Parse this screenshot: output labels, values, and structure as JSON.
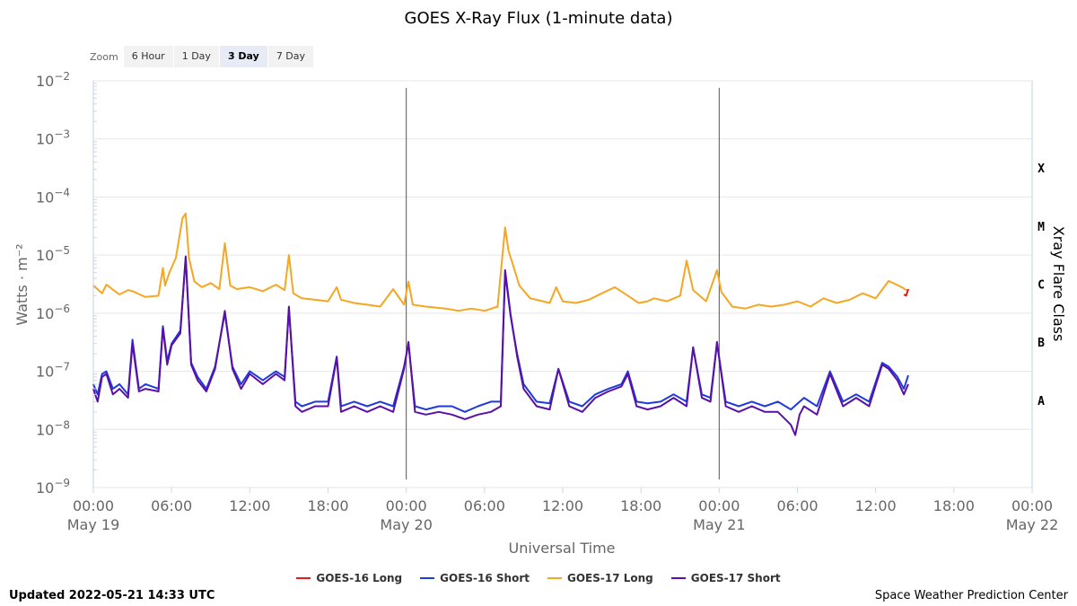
{
  "title": "GOES X-Ray Flux (1-minute data)",
  "zoom": {
    "label": "Zoom",
    "buttons": [
      "6 Hour",
      "1 Day",
      "3 Day",
      "7 Day"
    ],
    "selected": "3 Day"
  },
  "footer": {
    "updated": "Updated 2022-05-21 14:33 UTC",
    "credit": "Space Weather Prediction Center"
  },
  "colors": {
    "goes16_long": "#e41a1c",
    "goes16_short": "#1f3bd9",
    "goes17_long": "#f5a623",
    "goes17_short": "#5a0fa8"
  },
  "chart_data": {
    "type": "line",
    "title": "GOES X-Ray Flux (1-minute data)",
    "xlabel": "Universal Time",
    "ylabel": "Watts · m⁻²",
    "y2label": "Xray Flare Class",
    "yscale": "log",
    "ylim": [
      1e-09,
      0.01
    ],
    "xlim": [
      "2022-05-19 00:00",
      "2022-05-22 00:00"
    ],
    "y_tick_labels": [
      {
        "base": "10",
        "exp": "−2"
      },
      {
        "base": "10",
        "exp": "−3"
      },
      {
        "base": "10",
        "exp": "−4"
      },
      {
        "base": "10",
        "exp": "−5"
      },
      {
        "base": "10",
        "exp": "−6"
      },
      {
        "base": "10",
        "exp": "−7"
      },
      {
        "base": "10",
        "exp": "−8"
      },
      {
        "base": "10",
        "exp": "−9"
      }
    ],
    "x_ticks": [
      {
        "time": "2022-05-19 00:00",
        "label": "00:00",
        "date": "May 19"
      },
      {
        "time": "2022-05-19 06:00",
        "label": "06:00",
        "date": ""
      },
      {
        "time": "2022-05-19 12:00",
        "label": "12:00",
        "date": ""
      },
      {
        "time": "2022-05-19 18:00",
        "label": "18:00",
        "date": ""
      },
      {
        "time": "2022-05-20 00:00",
        "label": "00:00",
        "date": "May 20"
      },
      {
        "time": "2022-05-20 06:00",
        "label": "06:00",
        "date": ""
      },
      {
        "time": "2022-05-20 12:00",
        "label": "12:00",
        "date": ""
      },
      {
        "time": "2022-05-20 18:00",
        "label": "18:00",
        "date": ""
      },
      {
        "time": "2022-05-21 00:00",
        "label": "00:00",
        "date": "May 21"
      },
      {
        "time": "2022-05-21 06:00",
        "label": "06:00",
        "date": ""
      },
      {
        "time": "2022-05-21 12:00",
        "label": "12:00",
        "date": ""
      },
      {
        "time": "2022-05-21 18:00",
        "label": "18:00",
        "date": ""
      },
      {
        "time": "2022-05-22 00:00",
        "label": "00:00",
        "date": "May 22"
      }
    ],
    "day_boundaries": [
      "2022-05-20 00:00",
      "2022-05-21 00:00"
    ],
    "flare_classes": [
      {
        "label": "X",
        "flux": 0.0001
      },
      {
        "label": "M",
        "flux": 1e-05
      },
      {
        "label": "C",
        "flux": 1e-06
      },
      {
        "label": "B",
        "flux": 1e-07
      },
      {
        "label": "A",
        "flux": 1e-08
      }
    ],
    "grid": true,
    "legend_position": "bottom",
    "series": [
      {
        "key": "goes17_long",
        "name": "GOES-17 Long",
        "x": [
          "2022-05-19 00:00",
          "2022-05-19 00:40",
          "2022-05-19 01:00",
          "2022-05-19 02:00",
          "2022-05-19 02:40",
          "2022-05-19 03:00",
          "2022-05-19 04:00",
          "2022-05-19 05:00",
          "2022-05-19 05:20",
          "2022-05-19 05:30",
          "2022-05-19 05:50",
          "2022-05-19 06:20",
          "2022-05-19 06:50",
          "2022-05-19 07:05",
          "2022-05-19 07:20",
          "2022-05-19 07:45",
          "2022-05-19 08:20",
          "2022-05-19 09:00",
          "2022-05-19 09:40",
          "2022-05-19 10:05",
          "2022-05-19 10:30",
          "2022-05-19 11:00",
          "2022-05-19 12:00",
          "2022-05-19 13:00",
          "2022-05-19 14:00",
          "2022-05-19 14:40",
          "2022-05-19 15:00",
          "2022-05-19 15:20",
          "2022-05-19 16:00",
          "2022-05-19 17:00",
          "2022-05-19 18:00",
          "2022-05-19 18:40",
          "2022-05-19 19:00",
          "2022-05-19 20:00",
          "2022-05-19 21:00",
          "2022-05-19 22:00",
          "2022-05-19 23:00",
          "2022-05-19 23:50",
          "2022-05-20 00:10",
          "2022-05-20 00:30",
          "2022-05-20 01:30",
          "2022-05-20 03:00",
          "2022-05-20 04:00",
          "2022-05-20 05:00",
          "2022-05-20 06:00",
          "2022-05-20 07:00",
          "2022-05-20 07:35",
          "2022-05-20 07:50",
          "2022-05-20 08:10",
          "2022-05-20 08:40",
          "2022-05-20 09:30",
          "2022-05-20 10:30",
          "2022-05-20 11:00",
          "2022-05-20 11:30",
          "2022-05-20 12:00",
          "2022-05-20 13:00",
          "2022-05-20 14:00",
          "2022-05-20 15:00",
          "2022-05-20 16:00",
          "2022-05-20 17:00",
          "2022-05-20 17:50",
          "2022-05-20 18:30",
          "2022-05-20 19:00",
          "2022-05-20 20:00",
          "2022-05-20 21:00",
          "2022-05-20 21:30",
          "2022-05-20 22:00",
          "2022-05-20 23:00",
          "2022-05-20 23:50",
          "2022-05-21 00:10",
          "2022-05-21 01:00",
          "2022-05-21 02:00",
          "2022-05-21 03:00",
          "2022-05-21 04:00",
          "2022-05-21 05:00",
          "2022-05-21 06:00",
          "2022-05-21 07:00",
          "2022-05-21 08:00",
          "2022-05-21 09:00",
          "2022-05-21 10:00",
          "2022-05-21 11:00",
          "2022-05-21 12:00",
          "2022-05-21 13:00",
          "2022-05-21 14:00",
          "2022-05-21 14:30"
        ],
        "y": [
          3e-06,
          2.2e-06,
          3.1e-06,
          2.1e-06,
          2.5e-06,
          2.4e-06,
          1.9e-06,
          2e-06,
          6e-06,
          3e-06,
          5e-06,
          9e-06,
          4.3e-05,
          5.2e-05,
          9e-06,
          3.5e-06,
          2.8e-06,
          3.3e-06,
          2.6e-06,
          1.6e-05,
          3e-06,
          2.6e-06,
          2.8e-06,
          2.4e-06,
          3.1e-06,
          2.5e-06,
          1e-05,
          2.2e-06,
          1.8e-06,
          1.7e-06,
          1.6e-06,
          2.8e-06,
          1.7e-06,
          1.5e-06,
          1.4e-06,
          1.3e-06,
          2.6e-06,
          1.4e-06,
          3.5e-06,
          1.4e-06,
          1.3e-06,
          1.2e-06,
          1.1e-06,
          1.2e-06,
          1.1e-06,
          1.3e-06,
          3e-05,
          1.2e-05,
          7e-06,
          3e-06,
          1.8e-06,
          1.6e-06,
          1.5e-06,
          2.8e-06,
          1.6e-06,
          1.5e-06,
          1.7e-06,
          2.2e-06,
          2.8e-06,
          2e-06,
          1.5e-06,
          1.6e-06,
          1.8e-06,
          1.6e-06,
          2e-06,
          8e-06,
          2.5e-06,
          1.6e-06,
          5.5e-06,
          2.3e-06,
          1.3e-06,
          1.2e-06,
          1.4e-06,
          1.3e-06,
          1.4e-06,
          1.6e-06,
          1.3e-06,
          1.8e-06,
          1.5e-06,
          1.7e-06,
          2.2e-06,
          1.8e-06,
          3.6e-06,
          2.8e-06,
          2.4e-06
        ]
      },
      {
        "key": "goes16_long",
        "name": "GOES-16 Long",
        "x": [
          "2022-05-21 14:10",
          "2022-05-21 14:20",
          "2022-05-21 14:30"
        ],
        "y": [
          2.1e-06,
          2e-06,
          2.6e-06
        ]
      },
      {
        "key": "goes16_short",
        "name": "GOES-16 Short",
        "x": [
          "2022-05-19 00:00",
          "2022-05-19 00:20",
          "2022-05-19 00:40",
          "2022-05-19 01:00",
          "2022-05-19 01:30",
          "2022-05-19 02:00",
          "2022-05-19 02:40",
          "2022-05-19 03:00",
          "2022-05-19 03:30",
          "2022-05-19 04:00",
          "2022-05-19 05:00",
          "2022-05-19 05:20",
          "2022-05-19 05:40",
          "2022-05-19 06:00",
          "2022-05-19 06:40",
          "2022-05-19 07:05",
          "2022-05-19 07:30",
          "2022-05-19 08:00",
          "2022-05-19 08:40",
          "2022-05-19 09:20",
          "2022-05-19 10:05",
          "2022-05-19 10:40",
          "2022-05-19 11:20",
          "2022-05-19 12:00",
          "2022-05-19 13:00",
          "2022-05-19 14:00",
          "2022-05-19 14:40",
          "2022-05-19 15:00",
          "2022-05-19 15:30",
          "2022-05-19 16:00",
          "2022-05-19 17:00",
          "2022-05-19 18:00",
          "2022-05-19 18:40",
          "2022-05-19 19:00",
          "2022-05-19 20:00",
          "2022-05-19 21:00",
          "2022-05-19 22:00",
          "2022-05-19 23:00",
          "2022-05-19 23:50",
          "2022-05-20 00:10",
          "2022-05-20 00:40",
          "2022-05-20 01:30",
          "2022-05-20 02:30",
          "2022-05-20 03:30",
          "2022-05-20 04:30",
          "2022-05-20 05:30",
          "2022-05-20 06:30",
          "2022-05-20 07:15",
          "2022-05-20 07:35",
          "2022-05-20 08:00",
          "2022-05-20 08:30",
          "2022-05-20 09:00",
          "2022-05-20 10:00",
          "2022-05-20 11:00",
          "2022-05-20 11:40",
          "2022-05-20 12:30",
          "2022-05-20 13:30",
          "2022-05-20 14:30",
          "2022-05-20 15:30",
          "2022-05-20 16:30",
          "2022-05-20 17:00",
          "2022-05-20 17:40",
          "2022-05-20 18:30",
          "2022-05-20 19:30",
          "2022-05-20 20:30",
          "2022-05-20 21:30",
          "2022-05-20 22:00",
          "2022-05-20 22:40",
          "2022-05-20 23:20",
          "2022-05-20 23:50",
          "2022-05-21 00:30",
          "2022-05-21 01:30",
          "2022-05-21 02:30",
          "2022-05-21 03:30",
          "2022-05-21 04:30",
          "2022-05-21 05:30",
          "2022-05-21 06:30",
          "2022-05-21 07:30",
          "2022-05-21 08:30",
          "2022-05-21 09:30",
          "2022-05-21 10:30",
          "2022-05-21 11:30",
          "2022-05-21 12:30",
          "2022-05-21 13:00",
          "2022-05-21 13:40",
          "2022-05-21 14:10",
          "2022-05-21 14:30"
        ],
        "y": [
          6e-08,
          4e-08,
          9e-08,
          1e-07,
          5e-08,
          6e-08,
          4e-08,
          3.5e-07,
          5e-08,
          6e-08,
          5e-08,
          6e-07,
          1.5e-07,
          3e-07,
          5e-07,
          9e-06,
          1.4e-07,
          8e-08,
          5e-08,
          1.2e-07,
          1e-06,
          1.2e-07,
          6e-08,
          1e-07,
          7e-08,
          1e-07,
          8e-08,
          1.2e-06,
          3e-08,
          2.5e-08,
          3e-08,
          3e-08,
          1.8e-07,
          2.5e-08,
          3e-08,
          2.5e-08,
          3e-08,
          2.5e-08,
          1.2e-07,
          3e-07,
          2.5e-08,
          2.2e-08,
          2.5e-08,
          2.5e-08,
          2e-08,
          2.5e-08,
          3e-08,
          3e-08,
          5e-06,
          9e-07,
          2e-07,
          6e-08,
          3e-08,
          2.8e-08,
          1.1e-07,
          3e-08,
          2.5e-08,
          4e-08,
          5e-08,
          6e-08,
          1e-07,
          3e-08,
          2.8e-08,
          3e-08,
          4e-08,
          3e-08,
          2.5e-07,
          4e-08,
          3.5e-08,
          3e-07,
          3e-08,
          2.5e-08,
          3e-08,
          2.5e-08,
          3e-08,
          2.2e-08,
          3.5e-08,
          2.5e-08,
          1e-07,
          3e-08,
          4e-08,
          3e-08,
          1.4e-07,
          1.2e-07,
          8e-08,
          5e-08,
          8.5e-08
        ]
      },
      {
        "key": "goes17_short",
        "name": "GOES-17 Short",
        "x": [
          "2022-05-19 00:00",
          "2022-05-19 00:20",
          "2022-05-19 00:40",
          "2022-05-19 01:00",
          "2022-05-19 01:30",
          "2022-05-19 02:00",
          "2022-05-19 02:40",
          "2022-05-19 03:00",
          "2022-05-19 03:30",
          "2022-05-19 04:00",
          "2022-05-19 05:00",
          "2022-05-19 05:20",
          "2022-05-19 05:40",
          "2022-05-19 06:00",
          "2022-05-19 06:40",
          "2022-05-19 07:05",
          "2022-05-19 07:30",
          "2022-05-19 08:00",
          "2022-05-19 08:40",
          "2022-05-19 09:20",
          "2022-05-19 10:05",
          "2022-05-19 10:40",
          "2022-05-19 11:20",
          "2022-05-19 12:00",
          "2022-05-19 13:00",
          "2022-05-19 14:00",
          "2022-05-19 14:40",
          "2022-05-19 15:00",
          "2022-05-19 15:30",
          "2022-05-19 16:00",
          "2022-05-19 17:00",
          "2022-05-19 18:00",
          "2022-05-19 18:40",
          "2022-05-19 19:00",
          "2022-05-19 20:00",
          "2022-05-19 21:00",
          "2022-05-19 22:00",
          "2022-05-19 23:00",
          "2022-05-19 23:50",
          "2022-05-20 00:10",
          "2022-05-20 00:40",
          "2022-05-20 01:30",
          "2022-05-20 02:30",
          "2022-05-20 03:30",
          "2022-05-20 04:30",
          "2022-05-20 05:30",
          "2022-05-20 06:30",
          "2022-05-20 07:15",
          "2022-05-20 07:35",
          "2022-05-20 08:00",
          "2022-05-20 08:30",
          "2022-05-20 09:00",
          "2022-05-20 10:00",
          "2022-05-20 11:00",
          "2022-05-20 11:40",
          "2022-05-20 12:30",
          "2022-05-20 13:30",
          "2022-05-20 14:30",
          "2022-05-20 15:30",
          "2022-05-20 16:30",
          "2022-05-20 17:00",
          "2022-05-20 17:40",
          "2022-05-20 18:30",
          "2022-05-20 19:30",
          "2022-05-20 20:30",
          "2022-05-20 21:30",
          "2022-05-20 22:00",
          "2022-05-20 22:40",
          "2022-05-20 23:20",
          "2022-05-20 23:50",
          "2022-05-21 00:30",
          "2022-05-21 01:30",
          "2022-05-21 02:30",
          "2022-05-21 03:30",
          "2022-05-21 04:30",
          "2022-05-21 05:30",
          "2022-05-21 05:50",
          "2022-05-21 06:10",
          "2022-05-21 06:30",
          "2022-05-21 07:30",
          "2022-05-21 08:30",
          "2022-05-21 09:30",
          "2022-05-21 10:30",
          "2022-05-21 11:30",
          "2022-05-21 12:30",
          "2022-05-21 13:00",
          "2022-05-21 13:40",
          "2022-05-21 14:10",
          "2022-05-21 14:30"
        ],
        "y": [
          5e-08,
          3e-08,
          8e-08,
          9e-08,
          4e-08,
          5e-08,
          3.5e-08,
          3e-07,
          4.5e-08,
          5e-08,
          4.5e-08,
          5.5e-07,
          1.3e-07,
          2.8e-07,
          4.5e-07,
          9.5e-06,
          1.3e-07,
          7e-08,
          4.5e-08,
          1.1e-07,
          1.1e-06,
          1.1e-07,
          5e-08,
          9e-08,
          6e-08,
          9e-08,
          7e-08,
          1.3e-06,
          2.5e-08,
          2e-08,
          2.5e-08,
          2.5e-08,
          1.7e-07,
          2e-08,
          2.5e-08,
          2e-08,
          2.5e-08,
          2e-08,
          1.1e-07,
          3.2e-07,
          2e-08,
          1.8e-08,
          2e-08,
          1.8e-08,
          1.5e-08,
          1.8e-08,
          2e-08,
          2.5e-08,
          5.5e-06,
          9.5e-07,
          1.8e-07,
          5e-08,
          2.5e-08,
          2.2e-08,
          1.1e-07,
          2.5e-08,
          2e-08,
          3.5e-08,
          4.5e-08,
          5.5e-08,
          9e-08,
          2.5e-08,
          2.2e-08,
          2.5e-08,
          3.5e-08,
          2.5e-08,
          2.6e-07,
          3.5e-08,
          3e-08,
          3.2e-07,
          2.5e-08,
          2e-08,
          2.5e-08,
          2e-08,
          2e-08,
          1.2e-08,
          8e-09,
          1.8e-08,
          2.5e-08,
          1.8e-08,
          9e-08,
          2.5e-08,
          3.5e-08,
          2.5e-08,
          1.3e-07,
          1.1e-07,
          7e-08,
          4e-08,
          6e-08
        ]
      }
    ]
  }
}
